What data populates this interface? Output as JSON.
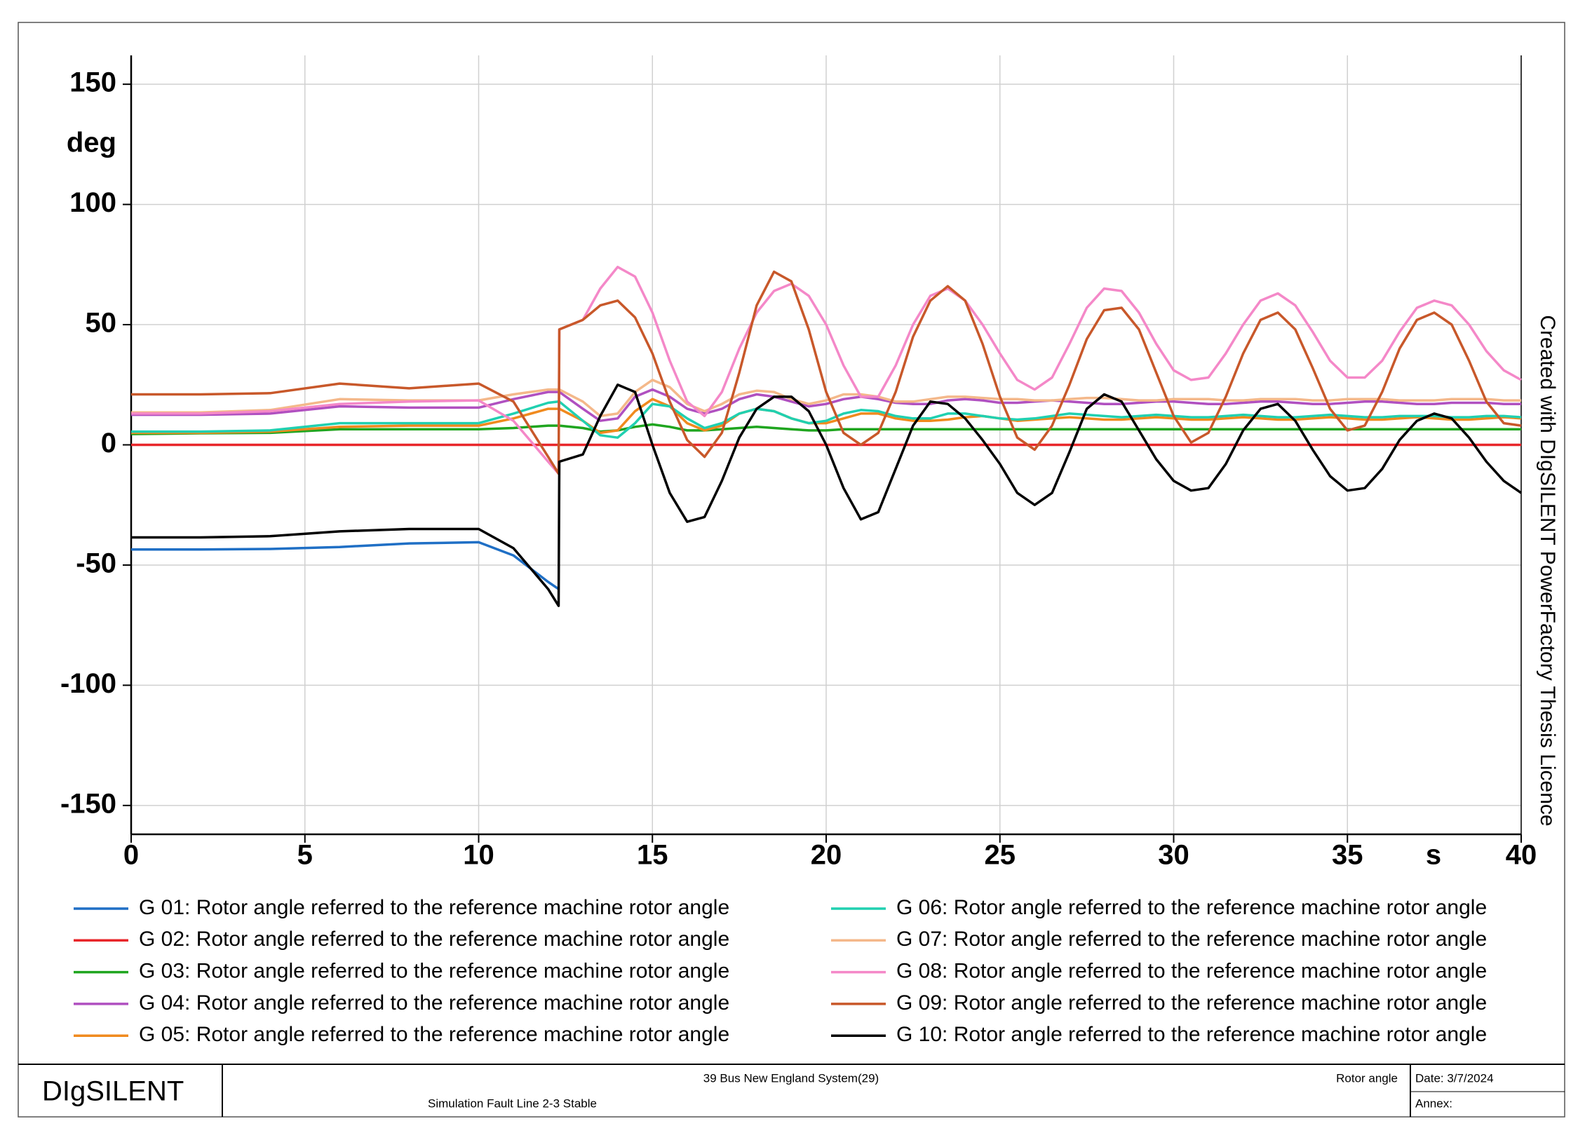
{
  "chart_data": {
    "type": "line",
    "yaxis_label": "deg",
    "xaxis_label": "s",
    "watermark": "Created with DIgSILENT PowerFactory Thesis Licence",
    "xlim": [
      0,
      40
    ],
    "xticks": [
      0,
      5,
      10,
      15,
      20,
      25,
      30,
      35,
      40
    ],
    "ylim": [
      -162,
      162
    ],
    "yticks": [
      -150,
      -100,
      -50,
      0,
      50,
      100,
      150
    ],
    "grid": true,
    "x": [
      0,
      2,
      4,
      6,
      8,
      10,
      11,
      12,
      12.3,
      12.32,
      13,
      13.5,
      14,
      14.5,
      15,
      15.5,
      16,
      16.5,
      17,
      17.5,
      18,
      18.5,
      19,
      19.5,
      20,
      20.5,
      21,
      21.5,
      22,
      22.5,
      23,
      23.5,
      24,
      24.5,
      25,
      25.5,
      26,
      26.5,
      27,
      27.5,
      28,
      28.5,
      29,
      29.5,
      30,
      30.5,
      31,
      31.5,
      32,
      32.5,
      33,
      33.5,
      34,
      34.5,
      35,
      35.5,
      36,
      36.5,
      37,
      37.5,
      38,
      38.5,
      39,
      39.5,
      40
    ],
    "series": [
      {
        "name": "G 01: Rotor angle referred to the reference machine rotor angle",
        "color": "#1f6fc5",
        "values": [
          -43.5,
          -43.5,
          -43.3,
          -42.5,
          -41,
          -40.5,
          -46,
          -57,
          -60,
          null,
          null,
          null,
          null,
          null,
          null,
          null,
          null,
          null,
          null,
          null,
          null,
          null,
          null,
          null,
          null,
          null,
          null,
          null,
          null,
          null,
          null,
          null,
          null,
          null,
          null,
          null,
          null,
          null,
          null,
          null,
          null,
          null,
          null,
          null,
          null,
          null,
          null,
          null,
          null,
          null,
          null,
          null,
          null,
          null,
          null,
          null,
          null,
          null,
          null,
          null,
          null,
          null,
          null,
          null,
          null
        ]
      },
      {
        "name": "G 02: Rotor angle referred to the reference machine rotor angle",
        "color": "#e8262a",
        "values": [
          0,
          0,
          0,
          0,
          0,
          0,
          0,
          0,
          0,
          0,
          0,
          0,
          0,
          0,
          0,
          0,
          0,
          0,
          0,
          0,
          0,
          0,
          0,
          0,
          0,
          0,
          0,
          0,
          0,
          0,
          0,
          0,
          0,
          0,
          0,
          0,
          0,
          0,
          0,
          0,
          0,
          0,
          0,
          0,
          0,
          0,
          0,
          0,
          0,
          0,
          0,
          0,
          0,
          0,
          0,
          0,
          0,
          0,
          0,
          0,
          0,
          0,
          0,
          0,
          0
        ]
      },
      {
        "name": "G 03: Rotor angle referred to the reference machine rotor angle",
        "color": "#1fa51f",
        "values": [
          4.5,
          4.8,
          5,
          6.5,
          6.5,
          6.5,
          7,
          8,
          8,
          8,
          7,
          5.5,
          6,
          7.5,
          8.5,
          7.5,
          6,
          6,
          6.5,
          7,
          7.5,
          7,
          6.5,
          6,
          6,
          6.5,
          6.5,
          6.5,
          6.5,
          6.5,
          6.5,
          6.5,
          6.5,
          6.5,
          6.5,
          6.5,
          6.5,
          6.5,
          6.5,
          6.5,
          6.5,
          6.5,
          6.5,
          6.5,
          6.5,
          6.5,
          6.5,
          6.5,
          6.5,
          6.5,
          6.5,
          6.5,
          6.5,
          6.5,
          6.5,
          6.5,
          6.5,
          6.5,
          6.5,
          6.5,
          6.5,
          6.5,
          6.5,
          6.5,
          6.5
        ]
      },
      {
        "name": "G 04: Rotor angle referred to the reference machine rotor angle",
        "color": "#b050c0",
        "values": [
          12.5,
          12.5,
          13,
          16,
          15.5,
          15.5,
          19,
          22,
          22,
          22,
          15,
          10,
          11,
          20,
          23,
          20,
          15,
          13,
          15,
          19,
          21,
          20,
          18,
          16,
          17,
          19,
          20,
          19,
          17.5,
          17,
          17,
          18.5,
          19,
          18.5,
          17.5,
          17.5,
          18,
          18.5,
          18,
          17.5,
          17,
          17,
          17.5,
          18,
          18,
          17.5,
          17,
          17,
          17.5,
          18,
          18,
          17.5,
          17,
          17,
          17.5,
          18,
          18,
          17.5,
          17,
          17,
          17.5,
          17.5,
          17.5,
          17,
          17
        ]
      },
      {
        "name": "G 05: Rotor angle referred to the reference machine rotor angle",
        "color": "#f08a1e",
        "values": [
          5,
          5,
          5.5,
          7.5,
          8,
          8,
          11,
          15,
          15,
          15,
          10,
          5,
          6,
          14,
          19,
          16,
          9,
          6,
          8,
          13,
          15,
          14,
          11,
          9,
          9,
          11,
          13,
          13,
          11,
          10,
          10,
          10.5,
          11.5,
          12,
          11,
          10,
          10.5,
          11,
          11.5,
          11,
          10.5,
          10.5,
          11,
          11.5,
          11,
          10.5,
          10.5,
          11,
          11.5,
          11,
          10.5,
          10.5,
          11,
          11.5,
          11,
          10.5,
          10.5,
          11,
          11.5,
          11,
          10.5,
          10.5,
          11,
          11.5,
          11
        ]
      },
      {
        "name": "G 06: Rotor angle referred to the reference machine rotor angle",
        "color": "#20d0b0",
        "values": [
          5.5,
          5.5,
          6,
          9,
          9,
          9,
          13,
          17.5,
          18,
          18,
          10,
          4,
          3,
          9,
          17,
          16,
          11,
          7,
          9,
          13,
          15,
          14,
          11,
          9,
          10,
          13,
          14.5,
          14,
          12,
          11,
          11,
          13,
          13,
          12,
          11,
          10.5,
          11,
          12,
          13,
          12.5,
          12,
          11.5,
          12,
          12.5,
          12,
          11.5,
          11.5,
          12,
          12.5,
          12,
          11.5,
          11.5,
          12,
          12.5,
          12,
          11.5,
          11.5,
          12,
          12,
          12,
          11.5,
          11.5,
          12,
          12,
          11.5
        ]
      },
      {
        "name": "G 07: Rotor angle referred to the reference machine rotor angle",
        "color": "#f4b88a",
        "values": [
          13.5,
          13.5,
          14.5,
          19,
          18.5,
          18.5,
          21,
          23,
          23,
          23,
          18,
          12,
          13,
          22,
          27,
          24,
          17,
          14,
          17,
          21,
          22.5,
          22,
          19,
          17,
          18.5,
          21,
          21,
          20,
          18,
          18,
          19,
          20,
          20,
          19.5,
          19,
          19,
          18.5,
          18.5,
          19,
          19.5,
          19.5,
          19,
          18.5,
          18.5,
          19,
          19,
          19,
          18.5,
          18.5,
          19,
          19,
          19,
          18.5,
          18.5,
          19,
          19,
          19,
          18.5,
          18.5,
          18.5,
          19,
          19,
          19,
          18.5,
          18.5
        ]
      },
      {
        "name": "G 08: Rotor angle referred to the reference machine rotor angle",
        "color": "#f488c8",
        "values": [
          13,
          13,
          14,
          17,
          18,
          18.5,
          10,
          -7,
          -12,
          48,
          52,
          65,
          74,
          70,
          55,
          35,
          18,
          12,
          22,
          40,
          55,
          64,
          67,
          62,
          50,
          33,
          20,
          20,
          33,
          50,
          62,
          65,
          60,
          50,
          38,
          27,
          23,
          28,
          42,
          57,
          65,
          64,
          55,
          42,
          31,
          27,
          28,
          38,
          50,
          60,
          63,
          58,
          47,
          35,
          28,
          28,
          35,
          47,
          57,
          60,
          58,
          50,
          39,
          31,
          27
        ]
      },
      {
        "name": "G 09: Rotor angle referred to the reference machine rotor angle",
        "color": "#c8582a",
        "values": [
          21,
          21,
          21.5,
          25.5,
          23.5,
          25.5,
          18,
          -5,
          -12,
          48,
          52,
          58,
          60,
          53,
          38,
          18,
          2,
          -5,
          5,
          30,
          58,
          72,
          68,
          48,
          22,
          5,
          0,
          5,
          22,
          45,
          60,
          66,
          60,
          42,
          20,
          3,
          -2,
          8,
          25,
          44,
          56,
          57,
          48,
          30,
          12,
          1,
          5,
          20,
          38,
          52,
          55,
          48,
          32,
          15,
          6,
          8,
          22,
          40,
          52,
          55,
          50,
          35,
          18,
          9,
          8
        ]
      },
      {
        "name": "G 10: Rotor angle referred to the reference machine rotor angle",
        "color": "#000000",
        "values": [
          -38.5,
          -38.5,
          -38,
          -36,
          -35,
          -35,
          -43,
          -60,
          -67,
          -7,
          -4,
          12,
          25,
          22,
          0,
          -20,
          -32,
          -30,
          -15,
          3,
          15,
          20,
          20,
          14,
          0,
          -18,
          -31,
          -28,
          -10,
          8,
          18,
          17,
          11,
          2,
          -8,
          -20,
          -25,
          -20,
          -3,
          15,
          21,
          18,
          6,
          -6,
          -15,
          -19,
          -18,
          -8,
          6,
          15,
          17,
          10,
          -2,
          -13,
          -19,
          -18,
          -10,
          2,
          10,
          13,
          11,
          3,
          -7,
          -15,
          -20
        ]
      }
    ]
  },
  "footer": {
    "logo": "DIgSILENT",
    "project": "39 Bus New England System(29)",
    "case": "Simulation Fault Line 2-3 Stable",
    "variable": "Rotor angle",
    "date": "Date: 3/7/2024",
    "annex": "Annex:"
  }
}
